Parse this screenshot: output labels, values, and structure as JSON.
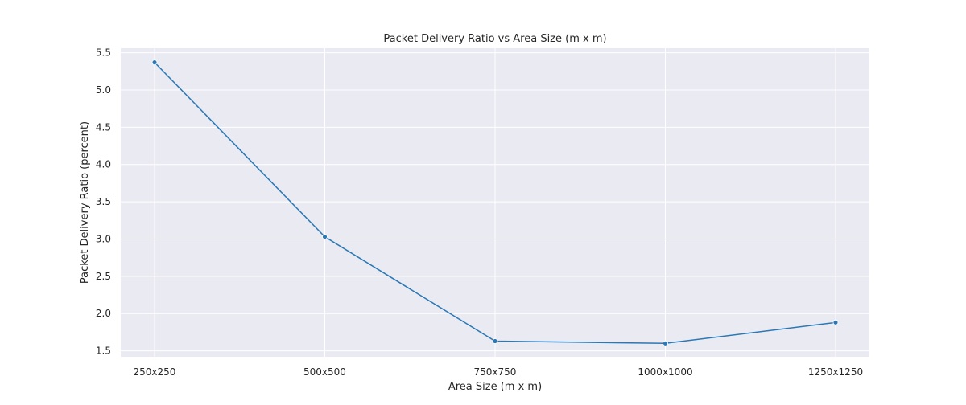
{
  "chart_data": {
    "type": "line",
    "title": "Packet Delivery Ratio vs Area Size (m x m)",
    "xlabel": "Area Size (m x m)",
    "ylabel": "Packet Delivery Ratio (percent)",
    "categories": [
      "250x250",
      "500x500",
      "750x750",
      "1000x1000",
      "1250x1250"
    ],
    "series": [
      {
        "values": [
          5.37,
          3.03,
          1.63,
          1.6,
          1.88
        ]
      }
    ],
    "ylim": [
      1.42,
      5.56
    ],
    "yticks": [
      "1.5",
      "2.0",
      "2.5",
      "3.0",
      "3.5",
      "4.0",
      "4.5",
      "5.0",
      "5.5"
    ],
    "grid": true,
    "colors": {
      "line": "#2a78b5",
      "plot_background": "#eaeaf2",
      "grid": "#ffffff"
    }
  }
}
